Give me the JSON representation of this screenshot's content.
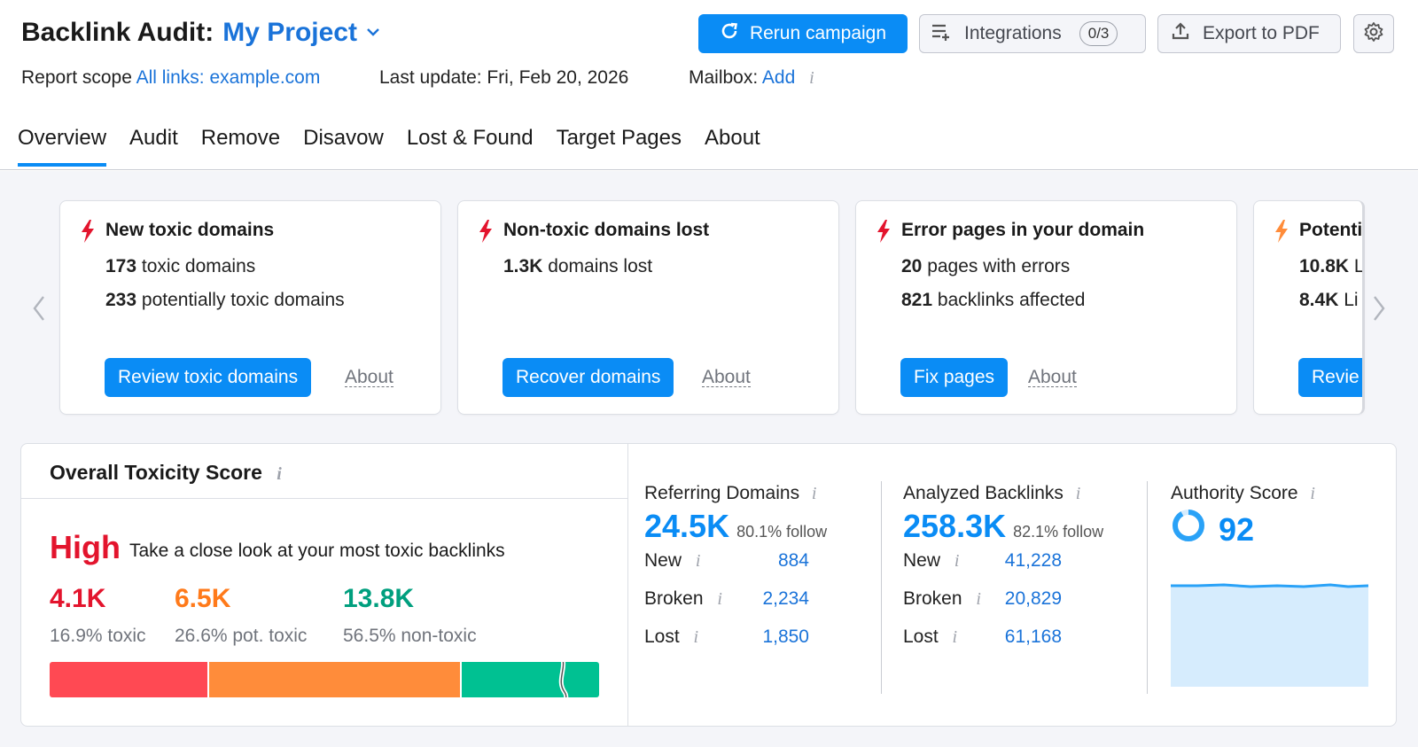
{
  "header": {
    "title_prefix": "Backlink Audit:",
    "project_name": "My Project",
    "rerun_label": "Rerun campaign",
    "integrations_label": "Integrations",
    "integrations_count": "0/3",
    "export_label": "Export to PDF",
    "scope_label": "Report scope",
    "scope_value": "All links: example.com",
    "last_update": "Last update: Fri, Feb 20, 2026",
    "mailbox_label": "Mailbox:",
    "mailbox_action": "Add",
    "info_glyph": "i"
  },
  "tabs": [
    {
      "label": "Overview",
      "active": true
    },
    {
      "label": "Audit"
    },
    {
      "label": "Remove"
    },
    {
      "label": "Disavow"
    },
    {
      "label": "Lost & Found"
    },
    {
      "label": "Target Pages"
    },
    {
      "label": "About"
    }
  ],
  "cards": [
    {
      "title": "New toxic domains",
      "line1_num": "173",
      "line1_text": "toxic domains",
      "line2_num": "233",
      "line2_text": "potentially toxic domains",
      "button": "Review toxic domains",
      "about": "About",
      "icon_color": "#e3142d"
    },
    {
      "title": "Non-toxic domains lost",
      "line1_num": "1.3K",
      "line1_text": "domains lost",
      "button": "Recover domains",
      "about": "About",
      "icon_color": "#e3142d"
    },
    {
      "title": "Error pages in your domain",
      "line1_num": "20",
      "line1_text": "pages with errors",
      "line2_num": "821",
      "line2_text": "backlinks affected",
      "button": "Fix pages",
      "about": "About",
      "icon_color": "#e3142d"
    },
    {
      "title": "Potenti",
      "line1_num": "10.8K",
      "line1_text": "L",
      "line2_num": "8.4K",
      "line2_text": "Li",
      "button": "Revie",
      "icon_color": "#ff8c3a"
    }
  ],
  "toxicity": {
    "title": "Overall Toxicity Score",
    "level": "High",
    "description": "Take a close look at your most toxic backlinks",
    "toxic_value": "4.1K",
    "toxic_pct": "16.9% toxic",
    "pot_value": "6.5K",
    "pot_pct": "26.6% pot. toxic",
    "non_value": "13.8K",
    "non_pct": "56.5% non-toxic",
    "colors": {
      "toxic": "#e3142d",
      "pot": "#ff7a1a",
      "non": "#009f7e"
    }
  },
  "referring_domains": {
    "label": "Referring Domains",
    "value": "24.5K",
    "follow": "80.1% follow",
    "rows": [
      {
        "label": "New",
        "value": "884"
      },
      {
        "label": "Broken",
        "value": "2,234"
      },
      {
        "label": "Lost",
        "value": "1,850"
      }
    ]
  },
  "analyzed_backlinks": {
    "label": "Analyzed Backlinks",
    "value": "258.3K",
    "follow": "82.1% follow",
    "rows": [
      {
        "label": "New",
        "value": "41,228"
      },
      {
        "label": "Broken",
        "value": "20,829"
      },
      {
        "label": "Lost",
        "value": "61,168"
      }
    ]
  },
  "authority": {
    "label": "Authority Score",
    "value": "92"
  }
}
